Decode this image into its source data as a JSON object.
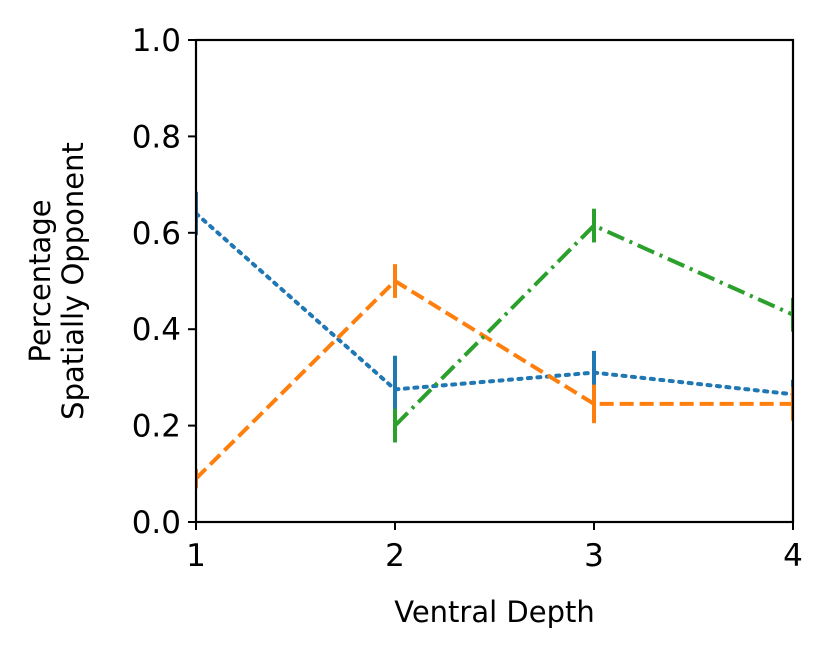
{
  "chart_data": {
    "type": "line",
    "xlabel": "Ventral Depth",
    "ylabel_lines": [
      "Percentage",
      "Spatially Opponent"
    ],
    "xlim": [
      1,
      4
    ],
    "ylim": [
      0,
      1
    ],
    "x_ticks": [
      1,
      2,
      3,
      4
    ],
    "x_tick_labels": [
      "1",
      "2",
      "3",
      "4"
    ],
    "y_ticks": [
      0,
      0.2,
      0.4,
      0.6,
      0.8,
      1.0
    ],
    "y_tick_labels": [
      "0.0",
      "0.2",
      "0.4",
      "0.6",
      "0.8",
      "1.0"
    ],
    "grid": false,
    "series": [
      {
        "name": "series-blue",
        "color": "#1f77b4",
        "style": "dotted",
        "x": [
          1,
          2,
          3,
          4
        ],
        "y": [
          0.64,
          0.275,
          0.31,
          0.265
        ],
        "err": [
          0.045,
          0.07,
          0.045,
          0.03
        ]
      },
      {
        "name": "series-orange",
        "color": "#ff7f0e",
        "style": "dashed",
        "x": [
          1,
          2,
          3,
          4
        ],
        "y": [
          0.09,
          0.5,
          0.245,
          0.245
        ],
        "err": [
          0.02,
          0.035,
          0.04,
          0.035
        ]
      },
      {
        "name": "series-green",
        "color": "#2ca02c",
        "style": "dashdot",
        "x": [
          2,
          3,
          4
        ],
        "y": [
          0.2,
          0.615,
          0.43
        ],
        "err": [
          0.035,
          0.035,
          0.035
        ]
      }
    ]
  }
}
